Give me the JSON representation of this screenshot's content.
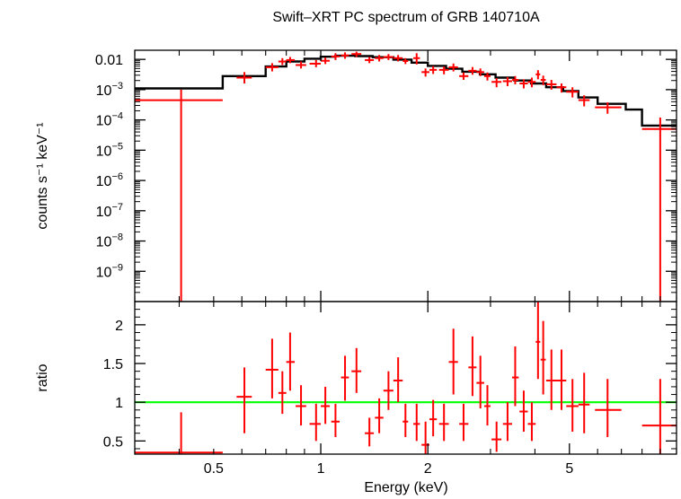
{
  "chart_data": [
    {
      "type": "scatter",
      "title": "Swift–XRT PC spectrum of GRB 140710A",
      "xlabel": "Energy (keV)",
      "ylabel": "counts s⁻¹ keV⁻¹",
      "xscale": "log",
      "yscale": "log",
      "xlim": [
        0.3,
        10
      ],
      "ylim": [
        1e-10,
        0.02
      ],
      "grid": false,
      "y_tick_labels": [
        {
          "value": 0.01,
          "label": "0.01"
        },
        {
          "value": 0.001,
          "base": "10",
          "exp": "−3"
        },
        {
          "value": 0.0001,
          "base": "10",
          "exp": "−4"
        },
        {
          "value": 1e-05,
          "base": "10",
          "exp": "−5"
        },
        {
          "value": 1e-06,
          "base": "10",
          "exp": "−6"
        },
        {
          "value": 1e-07,
          "base": "10",
          "exp": "−7"
        },
        {
          "value": 1e-08,
          "base": "10",
          "exp": "−8"
        },
        {
          "value": 1e-09,
          "base": "10",
          "exp": "−9"
        }
      ],
      "data_color": "#ff0000",
      "model_color": "#000000",
      "data_points": [
        {
          "x": 0.405,
          "xlo": 0.3,
          "xhi": 0.53,
          "y": 0.00045,
          "ylo": 1e-10,
          "yhi": 0.001
        },
        {
          "x": 0.61,
          "xlo": 0.58,
          "xhi": 0.64,
          "y": 0.0025,
          "ylo": 0.0016,
          "yhi": 0.0038
        },
        {
          "x": 0.73,
          "xlo": 0.7,
          "xhi": 0.76,
          "y": 0.0055,
          "ylo": 0.004,
          "yhi": 0.0075
        },
        {
          "x": 0.78,
          "xlo": 0.76,
          "xhi": 0.8,
          "y": 0.0085,
          "ylo": 0.0065,
          "yhi": 0.011
        },
        {
          "x": 0.82,
          "xlo": 0.8,
          "xhi": 0.845,
          "y": 0.0095,
          "ylo": 0.0075,
          "yhi": 0.012
        },
        {
          "x": 0.88,
          "xlo": 0.85,
          "xhi": 0.91,
          "y": 0.0065,
          "ylo": 0.005,
          "yhi": 0.0085
        },
        {
          "x": 0.97,
          "xlo": 0.93,
          "xhi": 1.0,
          "y": 0.0072,
          "ylo": 0.0055,
          "yhi": 0.0095
        },
        {
          "x": 1.03,
          "xlo": 1.0,
          "xhi": 1.06,
          "y": 0.009,
          "ylo": 0.007,
          "yhi": 0.0115
        },
        {
          "x": 1.1,
          "xlo": 1.07,
          "xhi": 1.13,
          "y": 0.0125,
          "ylo": 0.0095,
          "yhi": 0.016
        },
        {
          "x": 1.17,
          "xlo": 1.14,
          "xhi": 1.2,
          "y": 0.0135,
          "ylo": 0.0105,
          "yhi": 0.017
        },
        {
          "x": 1.26,
          "xlo": 1.22,
          "xhi": 1.3,
          "y": 0.015,
          "ylo": 0.012,
          "yhi": 0.018
        },
        {
          "x": 1.37,
          "xlo": 1.33,
          "xhi": 1.41,
          "y": 0.0095,
          "ylo": 0.0075,
          "yhi": 0.012
        },
        {
          "x": 1.46,
          "xlo": 1.42,
          "xhi": 1.5,
          "y": 0.011,
          "ylo": 0.0085,
          "yhi": 0.014
        },
        {
          "x": 1.55,
          "xlo": 1.5,
          "xhi": 1.6,
          "y": 0.012,
          "ylo": 0.0095,
          "yhi": 0.015
        },
        {
          "x": 1.65,
          "xlo": 1.6,
          "xhi": 1.7,
          "y": 0.011,
          "ylo": 0.0085,
          "yhi": 0.014
        },
        {
          "x": 1.73,
          "xlo": 1.7,
          "xhi": 1.76,
          "y": 0.0088,
          "ylo": 0.007,
          "yhi": 0.011
        },
        {
          "x": 1.86,
          "xlo": 1.82,
          "xhi": 1.9,
          "y": 0.011,
          "ylo": 0.0068,
          "yhi": 0.016
        },
        {
          "x": 1.97,
          "xlo": 1.92,
          "xhi": 2.02,
          "y": 0.0038,
          "ylo": 0.0027,
          "yhi": 0.005
        },
        {
          "x": 2.07,
          "xlo": 2.02,
          "xhi": 2.12,
          "y": 0.0045,
          "ylo": 0.0033,
          "yhi": 0.006
        },
        {
          "x": 2.22,
          "xlo": 2.15,
          "xhi": 2.29,
          "y": 0.0045,
          "ylo": 0.0032,
          "yhi": 0.0058
        },
        {
          "x": 2.36,
          "xlo": 2.29,
          "xhi": 2.43,
          "y": 0.0055,
          "ylo": 0.004,
          "yhi": 0.0073
        },
        {
          "x": 2.52,
          "xlo": 2.45,
          "xhi": 2.6,
          "y": 0.0028,
          "ylo": 0.0021,
          "yhi": 0.0037
        },
        {
          "x": 2.67,
          "xlo": 2.6,
          "xhi": 2.74,
          "y": 0.0042,
          "ylo": 0.0031,
          "yhi": 0.0056
        },
        {
          "x": 2.81,
          "xlo": 2.74,
          "xhi": 2.88,
          "y": 0.0038,
          "ylo": 0.0028,
          "yhi": 0.005
        },
        {
          "x": 2.94,
          "xlo": 2.88,
          "xhi": 3.0,
          "y": 0.0028,
          "ylo": 0.002,
          "yhi": 0.0037
        },
        {
          "x": 3.12,
          "xlo": 3.02,
          "xhi": 3.22,
          "y": 0.0018,
          "ylo": 0.0012,
          "yhi": 0.0024
        },
        {
          "x": 3.35,
          "xlo": 3.25,
          "xhi": 3.45,
          "y": 0.0019,
          "ylo": 0.0013,
          "yhi": 0.0026
        },
        {
          "x": 3.52,
          "xlo": 3.45,
          "xhi": 3.6,
          "y": 0.0021,
          "ylo": 0.0015,
          "yhi": 0.0028
        },
        {
          "x": 3.72,
          "xlo": 3.62,
          "xhi": 3.82,
          "y": 0.0016,
          "ylo": 0.0011,
          "yhi": 0.0022
        },
        {
          "x": 3.92,
          "xlo": 3.82,
          "xhi": 4.02,
          "y": 0.0018,
          "ylo": 0.0012,
          "yhi": 0.0025
        },
        {
          "x": 4.08,
          "xlo": 4.02,
          "xhi": 4.14,
          "y": 0.0032,
          "ylo": 0.0022,
          "yhi": 0.0044
        },
        {
          "x": 4.22,
          "xlo": 4.15,
          "xhi": 4.29,
          "y": 0.0021,
          "ylo": 0.0014,
          "yhi": 0.0029
        },
        {
          "x": 4.45,
          "xlo": 4.3,
          "xhi": 4.6,
          "y": 0.0015,
          "ylo": 0.001,
          "yhi": 0.0021
        },
        {
          "x": 4.75,
          "xlo": 4.6,
          "xhi": 4.9,
          "y": 0.0012,
          "ylo": 0.0008,
          "yhi": 0.0016
        },
        {
          "x": 5.1,
          "xlo": 4.9,
          "xhi": 5.3,
          "y": 0.00085,
          "ylo": 0.00055,
          "yhi": 0.0012
        },
        {
          "x": 5.5,
          "xlo": 5.3,
          "xhi": 5.7,
          "y": 0.00045,
          "ylo": 0.00028,
          "yhi": 0.00065
        },
        {
          "x": 6.4,
          "xlo": 5.9,
          "xhi": 7.0,
          "y": 0.00026,
          "ylo": 0.00016,
          "yhi": 0.00038
        },
        {
          "x": 9.0,
          "xlo": 8.0,
          "xhi": 10.0,
          "y": 5e-05,
          "ylo": 1e-10,
          "yhi": 0.00012
        }
      ],
      "model_steps": [
        {
          "xlo": 0.3,
          "xhi": 0.53,
          "y": 0.0011
        },
        {
          "xlo": 0.53,
          "xhi": 0.7,
          "y": 0.0028
        },
        {
          "xlo": 0.7,
          "xhi": 0.8,
          "y": 0.0058
        },
        {
          "xlo": 0.8,
          "xhi": 0.9,
          "y": 0.0085
        },
        {
          "xlo": 0.9,
          "xhi": 1.0,
          "y": 0.0105
        },
        {
          "xlo": 1.0,
          "xhi": 1.1,
          "y": 0.0122
        },
        {
          "xlo": 1.1,
          "xhi": 1.25,
          "y": 0.0132
        },
        {
          "xlo": 1.25,
          "xhi": 1.4,
          "y": 0.0128
        },
        {
          "xlo": 1.4,
          "xhi": 1.6,
          "y": 0.0118
        },
        {
          "xlo": 1.6,
          "xhi": 1.8,
          "y": 0.0098
        },
        {
          "xlo": 1.8,
          "xhi": 2.0,
          "y": 0.0078
        },
        {
          "xlo": 2.0,
          "xhi": 2.25,
          "y": 0.0061
        },
        {
          "xlo": 2.25,
          "xhi": 2.5,
          "y": 0.0049
        },
        {
          "xlo": 2.5,
          "xhi": 2.8,
          "y": 0.0039
        },
        {
          "xlo": 2.8,
          "xhi": 3.1,
          "y": 0.0032
        },
        {
          "xlo": 3.1,
          "xhi": 3.5,
          "y": 0.0025
        },
        {
          "xlo": 3.5,
          "xhi": 3.9,
          "y": 0.002
        },
        {
          "xlo": 3.9,
          "xhi": 4.3,
          "y": 0.0016
        },
        {
          "xlo": 4.3,
          "xhi": 4.8,
          "y": 0.0012
        },
        {
          "xlo": 4.8,
          "xhi": 5.3,
          "y": 0.0009
        },
        {
          "xlo": 5.3,
          "xhi": 6.0,
          "y": 0.00055
        },
        {
          "xlo": 6.0,
          "xhi": 7.2,
          "y": 0.00034
        },
        {
          "xlo": 7.2,
          "xhi": 8.0,
          "y": 0.00022
        },
        {
          "xlo": 8.0,
          "xhi": 10.0,
          "y": 6.5e-05
        }
      ]
    },
    {
      "type": "scatter",
      "title": "",
      "xlabel": "Energy (keV)",
      "ylabel": "ratio",
      "xscale": "log",
      "yscale": "linear",
      "xlim": [
        0.3,
        10
      ],
      "ylim": [
        0.33,
        2.3
      ],
      "x_tick_labels": [
        {
          "value": 0.5,
          "label": "0.5"
        },
        {
          "value": 1,
          "label": "1"
        },
        {
          "value": 2,
          "label": "2"
        },
        {
          "value": 5,
          "label": "5"
        }
      ],
      "y_tick_labels": [
        {
          "value": 0.5,
          "label": "0.5"
        },
        {
          "value": 1,
          "label": "1"
        },
        {
          "value": 1.5,
          "label": "1.5"
        },
        {
          "value": 2,
          "label": "2"
        }
      ],
      "reference_line": {
        "y": 1,
        "color": "#00ff00"
      },
      "data_color": "#ff0000",
      "data_points": [
        {
          "x": 0.405,
          "xlo": 0.3,
          "xhi": 0.53,
          "y": 0.35,
          "ylo": 0.33,
          "yhi": 0.87
        },
        {
          "x": 0.61,
          "xlo": 0.58,
          "xhi": 0.64,
          "y": 1.07,
          "ylo": 0.6,
          "yhi": 1.45
        },
        {
          "x": 0.73,
          "xlo": 0.7,
          "xhi": 0.76,
          "y": 1.42,
          "ylo": 1.05,
          "yhi": 1.82
        },
        {
          "x": 0.78,
          "xlo": 0.76,
          "xhi": 0.8,
          "y": 1.12,
          "ylo": 0.85,
          "yhi": 1.4
        },
        {
          "x": 0.82,
          "xlo": 0.8,
          "xhi": 0.845,
          "y": 1.52,
          "ylo": 1.15,
          "yhi": 1.9
        },
        {
          "x": 0.88,
          "xlo": 0.85,
          "xhi": 0.91,
          "y": 0.95,
          "ylo": 0.7,
          "yhi": 1.22
        },
        {
          "x": 0.97,
          "xlo": 0.93,
          "xhi": 1.0,
          "y": 0.72,
          "ylo": 0.5,
          "yhi": 0.98
        },
        {
          "x": 1.03,
          "xlo": 1.0,
          "xhi": 1.06,
          "y": 0.95,
          "ylo": 0.72,
          "yhi": 1.2
        },
        {
          "x": 1.1,
          "xlo": 1.07,
          "xhi": 1.13,
          "y": 0.75,
          "ylo": 0.55,
          "yhi": 0.98
        },
        {
          "x": 1.17,
          "xlo": 1.14,
          "xhi": 1.2,
          "y": 1.32,
          "ylo": 1.02,
          "yhi": 1.6
        },
        {
          "x": 1.26,
          "xlo": 1.22,
          "xhi": 1.3,
          "y": 1.4,
          "ylo": 1.12,
          "yhi": 1.7
        },
        {
          "x": 1.37,
          "xlo": 1.33,
          "xhi": 1.41,
          "y": 0.6,
          "ylo": 0.43,
          "yhi": 0.8
        },
        {
          "x": 1.46,
          "xlo": 1.42,
          "xhi": 1.5,
          "y": 0.8,
          "ylo": 0.6,
          "yhi": 1.05
        },
        {
          "x": 1.55,
          "xlo": 1.5,
          "xhi": 1.6,
          "y": 1.15,
          "ylo": 0.9,
          "yhi": 1.4
        },
        {
          "x": 1.65,
          "xlo": 1.6,
          "xhi": 1.7,
          "y": 1.28,
          "ylo": 1.0,
          "yhi": 1.58
        },
        {
          "x": 1.73,
          "xlo": 1.7,
          "xhi": 1.76,
          "y": 0.75,
          "ylo": 0.55,
          "yhi": 0.98
        },
        {
          "x": 1.86,
          "xlo": 1.82,
          "xhi": 1.9,
          "y": 0.72,
          "ylo": 0.5,
          "yhi": 0.98
        },
        {
          "x": 1.97,
          "xlo": 1.92,
          "xhi": 2.02,
          "y": 0.45,
          "ylo": 0.33,
          "yhi": 0.75
        },
        {
          "x": 2.07,
          "xlo": 2.02,
          "xhi": 2.12,
          "y": 0.78,
          "ylo": 0.56,
          "yhi": 1.03
        },
        {
          "x": 2.22,
          "xlo": 2.15,
          "xhi": 2.29,
          "y": 0.72,
          "ylo": 0.5,
          "yhi": 0.98
        },
        {
          "x": 2.36,
          "xlo": 2.29,
          "xhi": 2.43,
          "y": 1.52,
          "ylo": 1.1,
          "yhi": 1.95
        },
        {
          "x": 2.52,
          "xlo": 2.45,
          "xhi": 2.6,
          "y": 0.72,
          "ylo": 0.5,
          "yhi": 0.98
        },
        {
          "x": 2.67,
          "xlo": 2.6,
          "xhi": 2.74,
          "y": 1.45,
          "ylo": 1.08,
          "yhi": 1.85
        },
        {
          "x": 2.81,
          "xlo": 2.74,
          "xhi": 2.88,
          "y": 1.25,
          "ylo": 0.92,
          "yhi": 1.6
        },
        {
          "x": 2.94,
          "xlo": 2.88,
          "xhi": 3.0,
          "y": 0.95,
          "ylo": 0.7,
          "yhi": 1.22
        },
        {
          "x": 3.12,
          "xlo": 3.02,
          "xhi": 3.22,
          "y": 0.52,
          "ylo": 0.36,
          "yhi": 0.75
        },
        {
          "x": 3.35,
          "xlo": 3.25,
          "xhi": 3.45,
          "y": 0.72,
          "ylo": 0.5,
          "yhi": 1.0
        },
        {
          "x": 3.52,
          "xlo": 3.45,
          "xhi": 3.6,
          "y": 1.32,
          "ylo": 0.95,
          "yhi": 1.72
        },
        {
          "x": 3.72,
          "xlo": 3.62,
          "xhi": 3.82,
          "y": 0.88,
          "ylo": 0.62,
          "yhi": 1.15
        },
        {
          "x": 3.92,
          "xlo": 3.82,
          "xhi": 4.02,
          "y": 0.72,
          "ylo": 0.5,
          "yhi": 1.0
        },
        {
          "x": 4.08,
          "xlo": 4.02,
          "xhi": 4.14,
          "y": 1.78,
          "ylo": 1.3,
          "yhi": 2.3
        },
        {
          "x": 4.22,
          "xlo": 4.15,
          "xhi": 4.29,
          "y": 1.55,
          "ylo": 1.1,
          "yhi": 2.05
        },
        {
          "x": 4.45,
          "xlo": 4.3,
          "xhi": 4.6,
          "y": 1.28,
          "ylo": 0.9,
          "yhi": 1.68
        },
        {
          "x": 4.75,
          "xlo": 4.6,
          "xhi": 4.9,
          "y": 1.28,
          "ylo": 0.9,
          "yhi": 1.68
        },
        {
          "x": 5.1,
          "xlo": 4.9,
          "xhi": 5.3,
          "y": 0.95,
          "ylo": 0.62,
          "yhi": 1.3
        },
        {
          "x": 5.5,
          "xlo": 5.3,
          "xhi": 5.7,
          "y": 0.97,
          "ylo": 0.6,
          "yhi": 1.38
        },
        {
          "x": 6.4,
          "xlo": 5.9,
          "xhi": 7.0,
          "y": 0.9,
          "ylo": 0.55,
          "yhi": 1.3
        },
        {
          "x": 9.0,
          "xlo": 8.0,
          "xhi": 10.0,
          "y": 0.7,
          "ylo": 0.33,
          "yhi": 1.3
        }
      ]
    }
  ]
}
